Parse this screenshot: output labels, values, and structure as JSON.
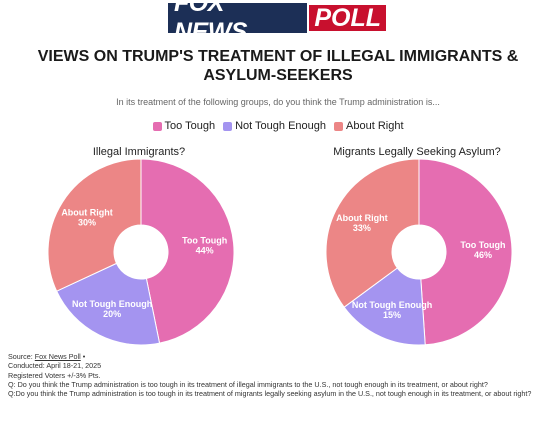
{
  "logo": {
    "part1": "FOX NEWS",
    "part2": "POLL",
    "colors": {
      "navy": "#1c2f56",
      "red": "#c8102e"
    }
  },
  "title": "VIEWS ON TRUMP'S TREATMENT OF ILLEGAL IMMIGRANTS & ASYLUM-SEEKERS",
  "subtitle": "In its treatment of the following groups, do you think the Trump administration is...",
  "legend": [
    {
      "label": "Too Tough",
      "color": "#e56db1"
    },
    {
      "label": "Not Tough Enough",
      "color": "#a494f0"
    },
    {
      "label": "About Right",
      "color": "#ec8686"
    }
  ],
  "chart_data": [
    {
      "type": "pie",
      "title": "Illegal Immigrants?",
      "donut": true,
      "slices": [
        {
          "label": "Too Tough",
          "value": 44,
          "value_label": "44%",
          "color": "#e56db1"
        },
        {
          "label": "Not Tough Enough",
          "value": 20,
          "value_label": "20%",
          "color": "#a494f0"
        },
        {
          "label": "About Right",
          "value": 30,
          "value_label": "30%",
          "color": "#ec8686"
        }
      ]
    },
    {
      "type": "pie",
      "title": "Migrants Legally Seeking Asylum?",
      "donut": true,
      "slices": [
        {
          "label": "Too Tough",
          "value": 46,
          "value_label": "46%",
          "color": "#e56db1"
        },
        {
          "label": "Not Tough Enough",
          "value": 15,
          "value_label": "15%",
          "color": "#a494f0"
        },
        {
          "label": "About Right",
          "value": 33,
          "value_label": "33%",
          "color": "#ec8686"
        }
      ]
    }
  ],
  "source": {
    "label": "Source: ",
    "link_text": "Fox News Poll",
    "suffix": " •",
    "lines": [
      "Conducted: April 18-21, 2025",
      "Registered Voters +/-3% Pts.",
      "Q: Do you think the Trump administration is too tough in its treatment of illegal immigrants to the U.S., not tough enough in its treatment, or about right?",
      "Q:Do you think the Trump administration is too tough in its treatment of migrants legally seeking asylum in the U.S., not tough enough in its treatment, or about right?"
    ]
  }
}
